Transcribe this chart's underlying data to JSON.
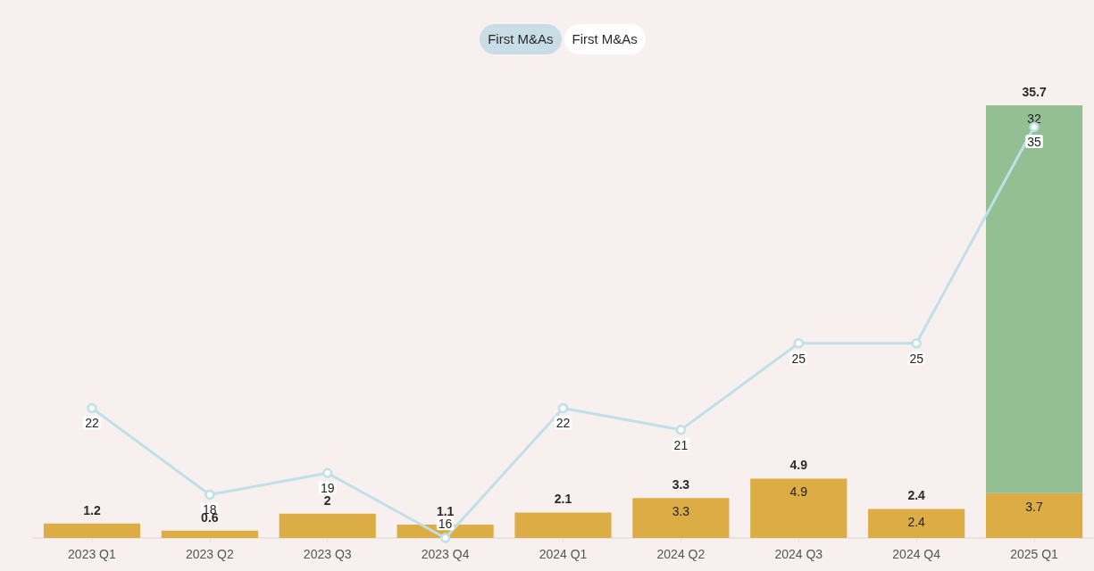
{
  "chart_data": {
    "type": "bar",
    "stacked": true,
    "annotations": [
      "First M&As",
      "First M&As"
    ],
    "categories": [
      "2023 Q1",
      "2023 Q2",
      "2023 Q3",
      "2023 Q4",
      "2024 Q1",
      "2024 Q2",
      "2024 Q3",
      "2024 Q4",
      "2025 Q1"
    ],
    "ylim": [
      0,
      35.7
    ],
    "y2lim": [
      16,
      36
    ],
    "tick_labels": "x",
    "marker": "circle",
    "line_style": "solid",
    "totals": [
      "1.2",
      "0.6",
      "2",
      "1.1",
      "2.1",
      "3.3",
      "4.9",
      "2.4",
      "35.7"
    ],
    "series": [
      {
        "color": "#dcad45",
        "values": [
          1.2,
          0.6,
          2,
          1.1,
          2.1,
          3.3,
          4.9,
          2.4,
          3.7
        ],
        "value_labels": [
          null,
          null,
          null,
          null,
          null,
          "3.3",
          "4.9",
          "2.4",
          "3.7"
        ]
      },
      {
        "color": "#93bf93",
        "values": [
          null,
          null,
          null,
          null,
          null,
          null,
          null,
          null,
          32
        ],
        "value_labels": [
          null,
          null,
          null,
          null,
          null,
          null,
          null,
          null,
          "32"
        ]
      },
      {
        "type": "line",
        "axis": "y2",
        "color": "#bfe0e9",
        "values": [
          22,
          18,
          19,
          16,
          22,
          21,
          25,
          25,
          35
        ],
        "value_labels": [
          "22",
          "18",
          "19",
          "16",
          "22",
          "21",
          "25",
          "25",
          "35"
        ]
      }
    ]
  }
}
